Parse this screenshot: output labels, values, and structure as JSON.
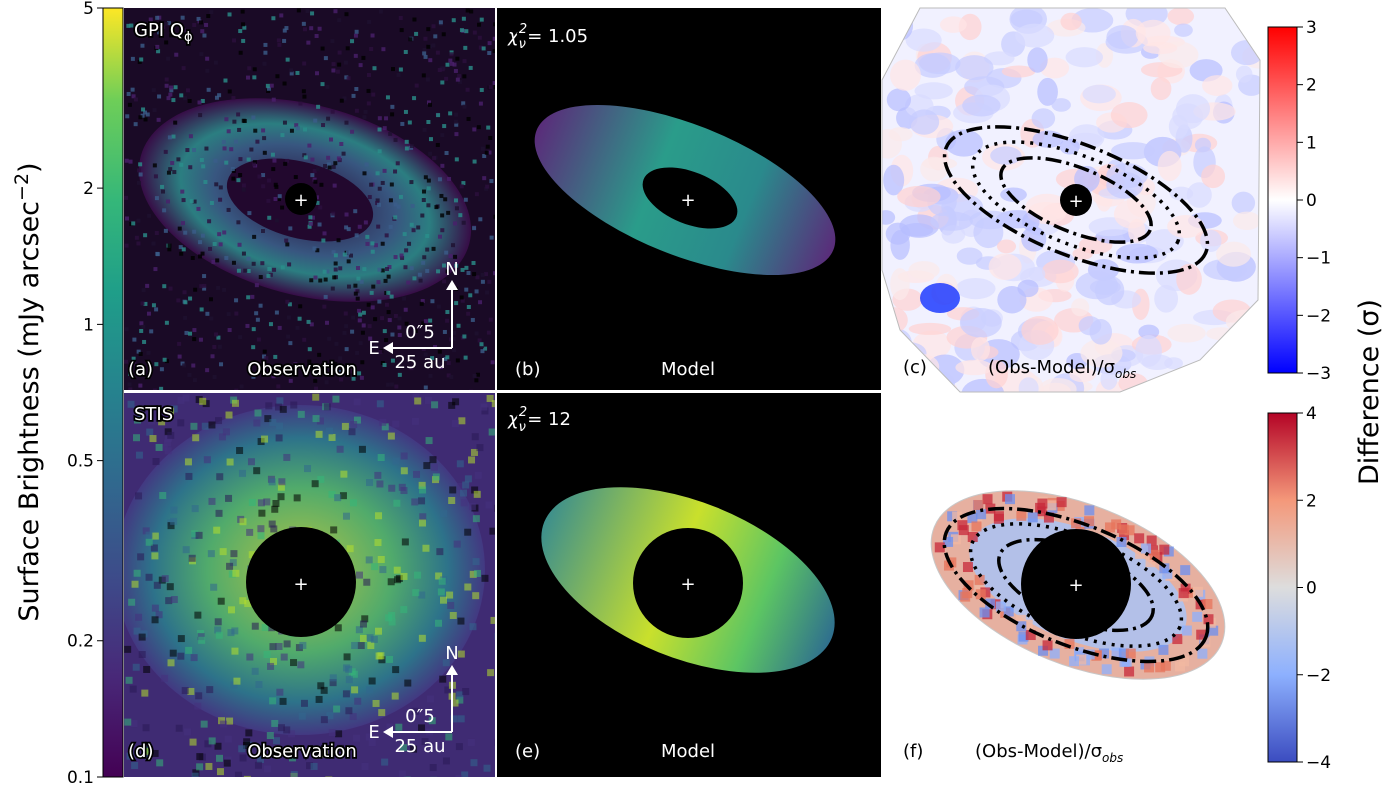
{
  "colorbar_left": {
    "label": "Surface Brightness (mJy arcsec",
    "label_sup": "−2",
    "label_close": ")",
    "scale": "log",
    "range": [
      0.1,
      5
    ],
    "ticks": [
      "5",
      "2",
      "1",
      "0.5",
      "0.2",
      "0.1"
    ],
    "tick_values": [
      5,
      2,
      1,
      0.5,
      0.2,
      0.1
    ],
    "colormap": "viridis"
  },
  "panels": {
    "a": {
      "letter": "(a)",
      "caption": "Observation",
      "instrument": "GPI Q",
      "instrument_sub": "ϕ"
    },
    "b": {
      "letter": "(b)",
      "caption": "Model",
      "chi_label": "χ",
      "chi_sub": "ν",
      "chi_sup": "2",
      "chi_value": "= 1.05"
    },
    "c": {
      "letter": "(c)",
      "caption": "(Obs-Model)/σ",
      "caption_sub": "obs"
    },
    "d": {
      "letter": "(d)",
      "caption": "Observation",
      "instrument": "STIS"
    },
    "e": {
      "letter": "(e)",
      "caption": "Model",
      "chi_label": "χ",
      "chi_sub": "ν",
      "chi_sup": "2",
      "chi_value": "= 12"
    },
    "f": {
      "letter": "(f)",
      "caption": "(Obs-Model)/σ",
      "caption_sub": "obs"
    }
  },
  "compass": {
    "north": "N",
    "east": "E",
    "scale_arcsec": "0″5",
    "scale_au": "25 au"
  },
  "colorbar_top": {
    "range": [
      -3,
      3
    ],
    "ticks": [
      "3",
      "2",
      "1",
      "0",
      "−1",
      "−2",
      "−3"
    ],
    "tick_values": [
      3,
      2,
      1,
      0,
      -1,
      -2,
      -3
    ],
    "colormap": "bwr"
  },
  "colorbar_bottom": {
    "range": [
      -4,
      4
    ],
    "ticks": [
      "4",
      "2",
      "0",
      "−2",
      "−4"
    ],
    "tick_values": [
      4,
      2,
      0,
      -2,
      -4
    ],
    "colormap": "coolwarm"
  },
  "colorbar_right_label": "Difference (σ)",
  "chart_data": {
    "type": "heatmap",
    "panels": [
      "(a) GPI Qϕ Observation",
      "(b) Model χν²=1.05",
      "(c) (Obs-Model)/σobs",
      "(d) STIS Observation",
      "(e) Model χν²=12",
      "(f) (Obs-Model)/σobs"
    ],
    "colorbars": [
      {
        "label": "Surface Brightness (mJy arcsec−2)",
        "scale": "log",
        "range": [
          0.1,
          5
        ]
      },
      {
        "label": "Difference (σ)",
        "range": [
          -3,
          3
        ]
      },
      {
        "label": "Difference (σ)",
        "range": [
          -4,
          4
        ]
      }
    ]
  }
}
